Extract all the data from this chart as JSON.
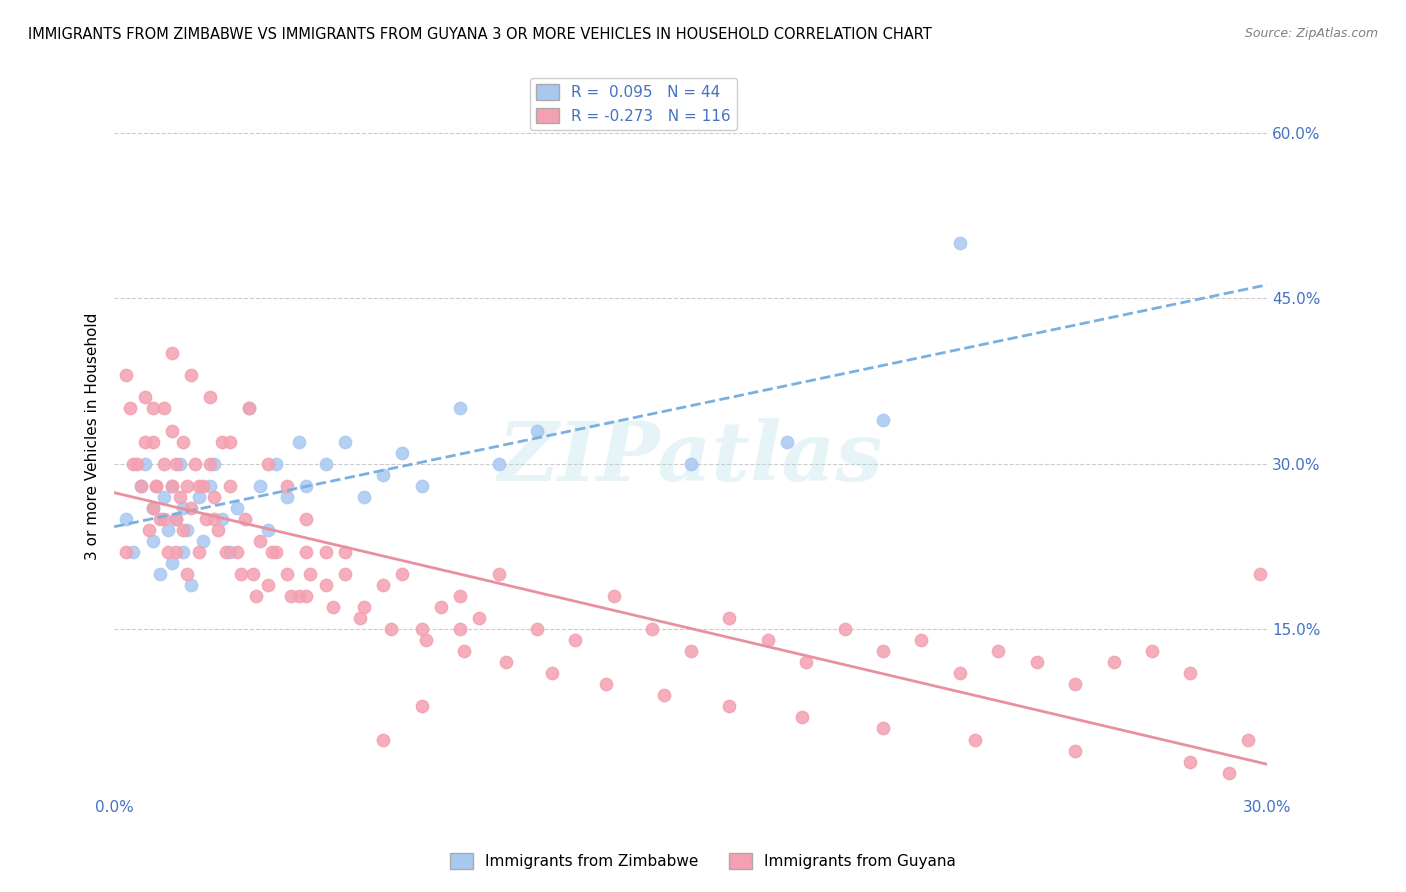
{
  "title": "IMMIGRANTS FROM ZIMBABWE VS IMMIGRANTS FROM GUYANA 3 OR MORE VEHICLES IN HOUSEHOLD CORRELATION CHART",
  "source": "Source: ZipAtlas.com",
  "ylabel": "3 or more Vehicles in Household",
  "xlim": [
    0.0,
    0.3
  ],
  "ylim": [
    0.0,
    0.65
  ],
  "ytick_labels_right": [
    "15.0%",
    "30.0%",
    "45.0%",
    "60.0%"
  ],
  "yticks_right": [
    0.15,
    0.3,
    0.45,
    0.6
  ],
  "legend_label1": "Immigrants from Zimbabwe",
  "legend_label2": "Immigrants from Guyana",
  "R1": 0.095,
  "N1": 44,
  "R2": -0.273,
  "N2": 116,
  "color_zimbabwe": "#a8c8f0",
  "color_guyana": "#f4a0b0",
  "color_text_blue": "#4472c4",
  "watermark": "ZIPatlas",
  "grid_color": "#cccccc",
  "zimbabwe_x": [
    0.003,
    0.005,
    0.007,
    0.008,
    0.01,
    0.01,
    0.012,
    0.013,
    0.014,
    0.015,
    0.015,
    0.016,
    0.017,
    0.018,
    0.018,
    0.019,
    0.02,
    0.022,
    0.023,
    0.025,
    0.026,
    0.028,
    0.03,
    0.032,
    0.035,
    0.038,
    0.04,
    0.042,
    0.045,
    0.048,
    0.05,
    0.055,
    0.06,
    0.065,
    0.07,
    0.075,
    0.08,
    0.09,
    0.1,
    0.11,
    0.15,
    0.175,
    0.2,
    0.22
  ],
  "zimbabwe_y": [
    0.25,
    0.22,
    0.28,
    0.3,
    0.23,
    0.26,
    0.2,
    0.27,
    0.24,
    0.21,
    0.28,
    0.25,
    0.3,
    0.22,
    0.26,
    0.24,
    0.19,
    0.27,
    0.23,
    0.28,
    0.3,
    0.25,
    0.22,
    0.26,
    0.35,
    0.28,
    0.24,
    0.3,
    0.27,
    0.32,
    0.28,
    0.3,
    0.32,
    0.27,
    0.29,
    0.31,
    0.28,
    0.35,
    0.3,
    0.33,
    0.3,
    0.32,
    0.34,
    0.5
  ],
  "guyana_x": [
    0.003,
    0.005,
    0.007,
    0.008,
    0.009,
    0.01,
    0.01,
    0.011,
    0.012,
    0.013,
    0.013,
    0.014,
    0.015,
    0.015,
    0.016,
    0.016,
    0.017,
    0.018,
    0.018,
    0.019,
    0.02,
    0.021,
    0.022,
    0.023,
    0.024,
    0.025,
    0.026,
    0.027,
    0.028,
    0.03,
    0.032,
    0.034,
    0.036,
    0.038,
    0.04,
    0.042,
    0.045,
    0.048,
    0.05,
    0.055,
    0.06,
    0.065,
    0.07,
    0.075,
    0.08,
    0.085,
    0.09,
    0.095,
    0.1,
    0.11,
    0.12,
    0.13,
    0.14,
    0.15,
    0.16,
    0.17,
    0.18,
    0.19,
    0.2,
    0.21,
    0.22,
    0.23,
    0.24,
    0.25,
    0.26,
    0.27,
    0.28,
    0.01,
    0.015,
    0.02,
    0.025,
    0.03,
    0.035,
    0.04,
    0.045,
    0.05,
    0.055,
    0.003,
    0.004,
    0.006,
    0.008,
    0.011,
    0.013,
    0.016,
    0.019,
    0.022,
    0.026,
    0.029,
    0.033,
    0.037,
    0.041,
    0.046,
    0.051,
    0.057,
    0.064,
    0.072,
    0.081,
    0.091,
    0.102,
    0.114,
    0.128,
    0.143,
    0.16,
    0.179,
    0.2,
    0.224,
    0.25,
    0.28,
    0.29,
    0.295,
    0.298,
    0.05,
    0.06,
    0.07,
    0.08,
    0.09
  ],
  "guyana_y": [
    0.22,
    0.3,
    0.28,
    0.36,
    0.24,
    0.26,
    0.32,
    0.28,
    0.25,
    0.3,
    0.35,
    0.22,
    0.28,
    0.33,
    0.25,
    0.3,
    0.27,
    0.24,
    0.32,
    0.28,
    0.26,
    0.3,
    0.22,
    0.28,
    0.25,
    0.3,
    0.27,
    0.24,
    0.32,
    0.28,
    0.22,
    0.25,
    0.2,
    0.23,
    0.19,
    0.22,
    0.2,
    0.18,
    0.22,
    0.19,
    0.2,
    0.17,
    0.19,
    0.2,
    0.15,
    0.17,
    0.18,
    0.16,
    0.2,
    0.15,
    0.14,
    0.18,
    0.15,
    0.13,
    0.16,
    0.14,
    0.12,
    0.15,
    0.13,
    0.14,
    0.11,
    0.13,
    0.12,
    0.1,
    0.12,
    0.13,
    0.11,
    0.35,
    0.4,
    0.38,
    0.36,
    0.32,
    0.35,
    0.3,
    0.28,
    0.25,
    0.22,
    0.38,
    0.35,
    0.3,
    0.32,
    0.28,
    0.25,
    0.22,
    0.2,
    0.28,
    0.25,
    0.22,
    0.2,
    0.18,
    0.22,
    0.18,
    0.2,
    0.17,
    0.16,
    0.15,
    0.14,
    0.13,
    0.12,
    0.11,
    0.1,
    0.09,
    0.08,
    0.07,
    0.06,
    0.05,
    0.04,
    0.03,
    0.02,
    0.05,
    0.2,
    0.18,
    0.22,
    0.05,
    0.08,
    0.15
  ]
}
